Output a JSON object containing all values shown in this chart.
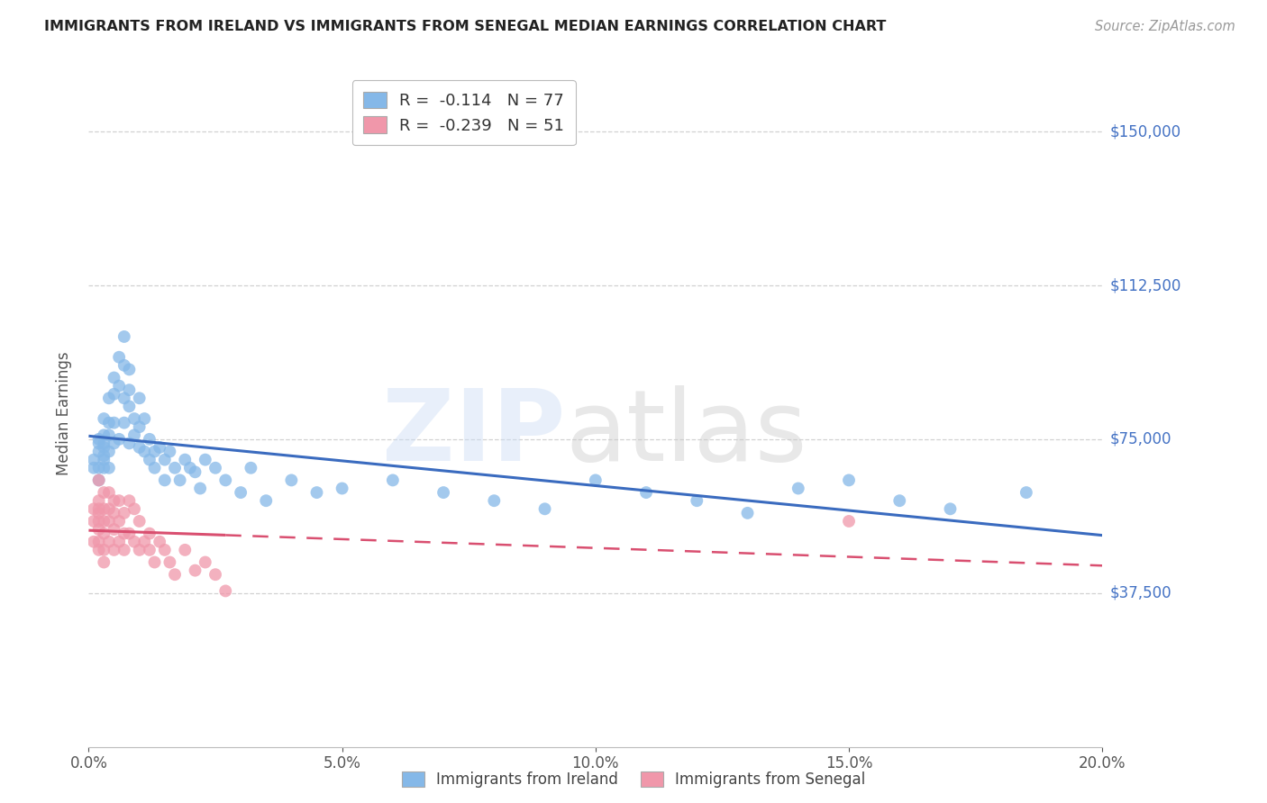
{
  "title": "IMMIGRANTS FROM IRELAND VS IMMIGRANTS FROM SENEGAL MEDIAN EARNINGS CORRELATION CHART",
  "source": "Source: ZipAtlas.com",
  "ylabel": "Median Earnings",
  "xlabel_ticks": [
    "0.0%",
    "5.0%",
    "10.0%",
    "15.0%",
    "20.0%"
  ],
  "ytick_labels": [
    "$37,500",
    "$75,000",
    "$112,500",
    "$150,000"
  ],
  "ytick_values": [
    37500,
    75000,
    112500,
    150000
  ],
  "xlim": [
    0.0,
    0.2
  ],
  "ylim": [
    0,
    162500
  ],
  "ireland_R": -0.114,
  "ireland_N": 77,
  "senegal_R": -0.239,
  "senegal_N": 51,
  "ireland_color": "#85b8e8",
  "senegal_color": "#f097aa",
  "ireland_line_color": "#3a6bbf",
  "senegal_line_color": "#d94f70",
  "background_color": "#ffffff",
  "grid_color": "#cccccc",
  "title_color": "#222222",
  "axis_label_color": "#555555",
  "ytick_color": "#4472c4",
  "ireland_x": [
    0.001,
    0.001,
    0.002,
    0.002,
    0.002,
    0.002,
    0.002,
    0.003,
    0.003,
    0.003,
    0.003,
    0.003,
    0.003,
    0.003,
    0.004,
    0.004,
    0.004,
    0.004,
    0.004,
    0.005,
    0.005,
    0.005,
    0.005,
    0.006,
    0.006,
    0.006,
    0.007,
    0.007,
    0.007,
    0.007,
    0.008,
    0.008,
    0.008,
    0.008,
    0.009,
    0.009,
    0.01,
    0.01,
    0.01,
    0.011,
    0.011,
    0.012,
    0.012,
    0.013,
    0.013,
    0.014,
    0.015,
    0.015,
    0.016,
    0.017,
    0.018,
    0.019,
    0.02,
    0.021,
    0.022,
    0.023,
    0.025,
    0.027,
    0.03,
    0.032,
    0.035,
    0.04,
    0.045,
    0.05,
    0.06,
    0.07,
    0.08,
    0.09,
    0.1,
    0.11,
    0.12,
    0.13,
    0.14,
    0.15,
    0.16,
    0.17,
    0.185
  ],
  "ireland_y": [
    70000,
    68000,
    75000,
    72000,
    68000,
    74000,
    65000,
    80000,
    76000,
    73000,
    70000,
    68000,
    74000,
    71000,
    85000,
    79000,
    76000,
    72000,
    68000,
    90000,
    86000,
    79000,
    74000,
    95000,
    88000,
    75000,
    100000,
    93000,
    85000,
    79000,
    92000,
    87000,
    83000,
    74000,
    80000,
    76000,
    85000,
    78000,
    73000,
    80000,
    72000,
    75000,
    70000,
    72000,
    68000,
    73000,
    70000,
    65000,
    72000,
    68000,
    65000,
    70000,
    68000,
    67000,
    63000,
    70000,
    68000,
    65000,
    62000,
    68000,
    60000,
    65000,
    62000,
    63000,
    65000,
    62000,
    60000,
    58000,
    65000,
    62000,
    60000,
    57000,
    63000,
    65000,
    60000,
    58000,
    62000
  ],
  "senegal_x": [
    0.001,
    0.001,
    0.001,
    0.002,
    0.002,
    0.002,
    0.002,
    0.002,
    0.002,
    0.002,
    0.002,
    0.003,
    0.003,
    0.003,
    0.003,
    0.003,
    0.003,
    0.004,
    0.004,
    0.004,
    0.004,
    0.005,
    0.005,
    0.005,
    0.005,
    0.006,
    0.006,
    0.006,
    0.007,
    0.007,
    0.007,
    0.008,
    0.008,
    0.009,
    0.009,
    0.01,
    0.01,
    0.011,
    0.012,
    0.012,
    0.013,
    0.014,
    0.015,
    0.016,
    0.017,
    0.019,
    0.021,
    0.023,
    0.025,
    0.027,
    0.15
  ],
  "senegal_y": [
    58000,
    55000,
    50000,
    65000,
    60000,
    57000,
    53000,
    50000,
    58000,
    55000,
    48000,
    62000,
    58000,
    55000,
    52000,
    48000,
    45000,
    62000,
    58000,
    55000,
    50000,
    60000,
    57000,
    53000,
    48000,
    60000,
    55000,
    50000,
    57000,
    52000,
    48000,
    60000,
    52000,
    58000,
    50000,
    55000,
    48000,
    50000,
    52000,
    48000,
    45000,
    50000,
    48000,
    45000,
    42000,
    48000,
    43000,
    45000,
    42000,
    38000,
    55000
  ]
}
